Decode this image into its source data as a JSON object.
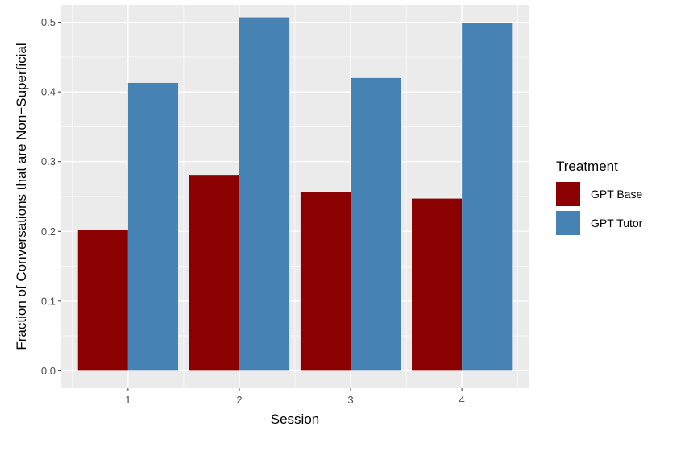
{
  "chart_data": {
    "type": "bar",
    "title": "",
    "xlabel": "Session",
    "ylabel": "Fraction of Conversations that are Non−Superficial",
    "categories": [
      "1",
      "2",
      "3",
      "4"
    ],
    "ylim": [
      -0.025,
      0.525
    ],
    "yticks": [
      0.0,
      0.1,
      0.2,
      0.3,
      0.4,
      0.5
    ],
    "ytick_labels": [
      "0.0",
      "0.1",
      "0.2",
      "0.3",
      "0.4",
      "0.5"
    ],
    "grid": true,
    "legend": {
      "title": "Treatment",
      "placement": "right"
    },
    "series": [
      {
        "name": "GPT Base",
        "color": "#8b0000",
        "values": [
          0.202,
          0.281,
          0.256,
          0.247
        ]
      },
      {
        "name": "GPT Tutor",
        "color": "#4682b4",
        "values": [
          0.413,
          0.507,
          0.42,
          0.499
        ]
      }
    ]
  }
}
